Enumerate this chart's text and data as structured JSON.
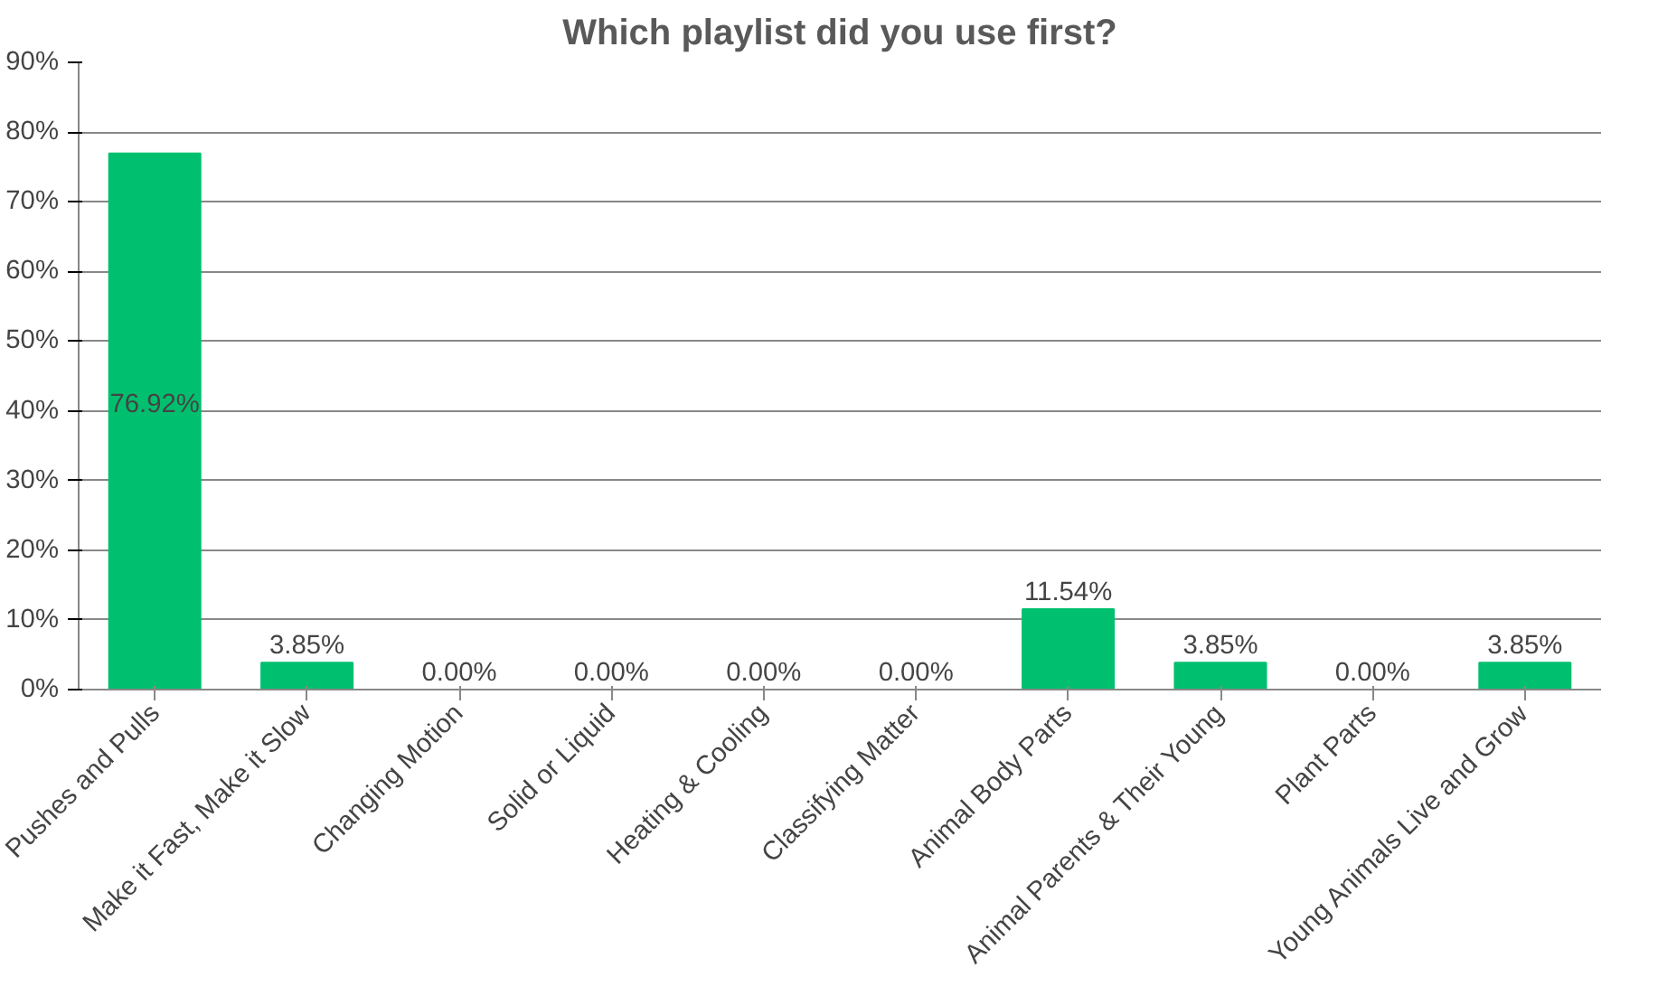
{
  "chart_data": {
    "type": "bar",
    "title": "Which playlist did you use first?",
    "categories": [
      "Pushes and Pulls",
      "Make it Fast, Make it Slow",
      "Changing Motion",
      "Solid or Liquid",
      "Heating & Cooling",
      "Classifying Matter",
      "Animal Body Parts",
      "Animal Parents & Their Young",
      "Plant Parts",
      "Young Animals Live and Grow"
    ],
    "values": [
      76.92,
      3.85,
      0,
      0,
      0,
      0,
      11.54,
      3.85,
      0,
      3.85
    ],
    "value_labels": [
      "76.92%",
      "3.85%",
      "0.00%",
      "0.00%",
      "0.00%",
      "0.00%",
      "11.54%",
      "3.85%",
      "0.00%",
      "3.85%"
    ],
    "color": "#00c06f",
    "ylim": [
      0,
      90
    ],
    "yticks": [
      {
        "value": 0,
        "label": "0%"
      },
      {
        "value": 10,
        "label": "10%"
      },
      {
        "value": 20,
        "label": "20%"
      },
      {
        "value": 30,
        "label": "30%"
      },
      {
        "value": 40,
        "label": "40%"
      },
      {
        "value": 50,
        "label": "50%"
      },
      {
        "value": 60,
        "label": "60%"
      },
      {
        "value": 70,
        "label": "70%"
      },
      {
        "value": 80,
        "label": "80%"
      },
      {
        "value": 90,
        "label": "90%"
      }
    ],
    "grid": "y"
  }
}
